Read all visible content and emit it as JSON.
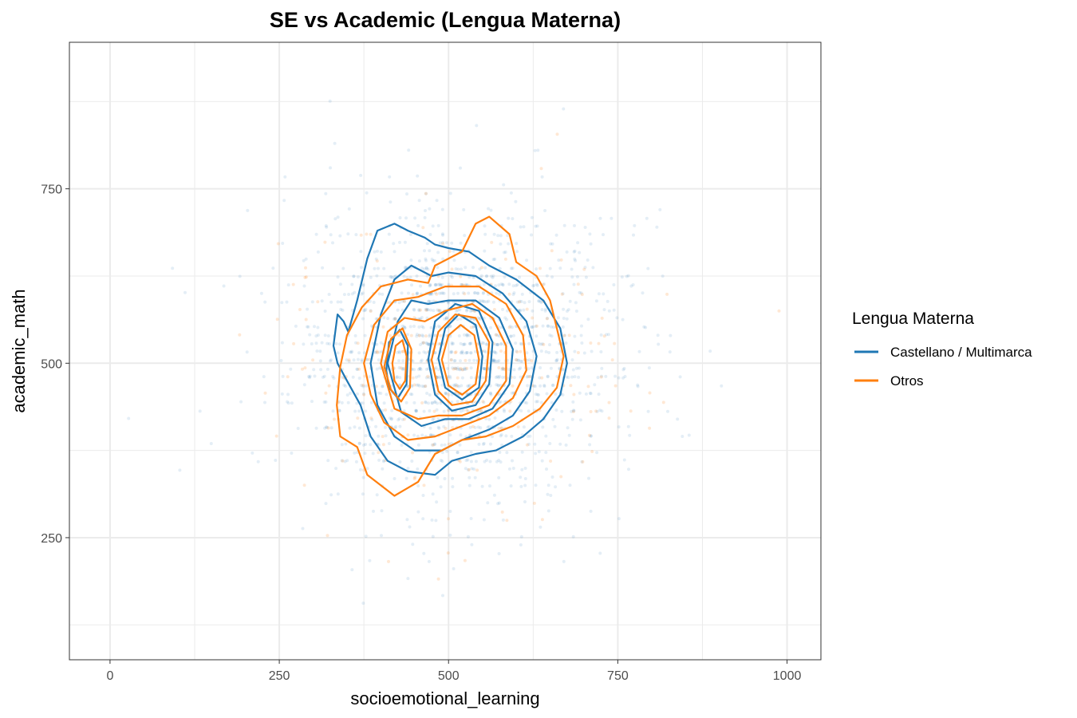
{
  "chart_data": {
    "type": "scatter",
    "title": "SE vs Academic (Lengua Materna)",
    "xlabel": "socioemotional_learning",
    "ylabel": "academic_math",
    "xlim": [
      -60,
      1050
    ],
    "ylim": [
      75,
      960
    ],
    "x_ticks": [
      0,
      250,
      500,
      750,
      1000
    ],
    "x_tick_labels": [
      "0",
      "250",
      "500",
      "750",
      "1000"
    ],
    "y_ticks": [
      250,
      500,
      750
    ],
    "y_tick_labels": [
      "250",
      "500",
      "750"
    ],
    "grid": true,
    "legend_position": "right",
    "legend_title": "Lengua Materna",
    "series": [
      {
        "name": "Castellano / Multimarca",
        "color": "#1f77b4",
        "point_cloud": {
          "x_mean": 510,
          "x_sd": 120,
          "y_mean": 510,
          "y_sd": 105
        },
        "contours": [
          [
            [
              330,
              525
            ],
            [
              336,
              570
            ],
            [
              345,
              560
            ],
            [
              352,
              545
            ],
            [
              365,
              590
            ],
            [
              380,
              650
            ],
            [
              395,
              690
            ],
            [
              420,
              700
            ],
            [
              440,
              690
            ],
            [
              465,
              680
            ],
            [
              480,
              670
            ],
            [
              500,
              665
            ],
            [
              530,
              660
            ],
            [
              560,
              640
            ],
            [
              600,
              620
            ],
            [
              640,
              590
            ],
            [
              665,
              550
            ],
            [
              675,
              500
            ],
            [
              665,
              455
            ],
            [
              640,
              420
            ],
            [
              610,
              395
            ],
            [
              570,
              375
            ],
            [
              540,
              370
            ],
            [
              505,
              360
            ],
            [
              480,
              340
            ],
            [
              440,
              345
            ],
            [
              410,
              360
            ],
            [
              385,
              395
            ],
            [
              370,
              440
            ],
            [
              350,
              475
            ],
            [
              336,
              500
            ]
          ],
          [
            [
              385,
              500
            ],
            [
              400,
              570
            ],
            [
              420,
              620
            ],
            [
              445,
              640
            ],
            [
              475,
              625
            ],
            [
              500,
              630
            ],
            [
              540,
              625
            ],
            [
              580,
              600
            ],
            [
              615,
              560
            ],
            [
              630,
              510
            ],
            [
              620,
              460
            ],
            [
              595,
              425
            ],
            [
              560,
              405
            ],
            [
              520,
              390
            ],
            [
              490,
              375
            ],
            [
              450,
              375
            ],
            [
              420,
              395
            ],
            [
              395,
              440
            ]
          ],
          [
            [
              410,
              500
            ],
            [
              425,
              560
            ],
            [
              445,
              590
            ],
            [
              470,
              585
            ],
            [
              500,
              590
            ],
            [
              540,
              590
            ],
            [
              575,
              565
            ],
            [
              595,
              520
            ],
            [
              590,
              470
            ],
            [
              565,
              435
            ],
            [
              530,
              420
            ],
            [
              495,
              420
            ],
            [
              460,
              410
            ],
            [
              430,
              430
            ]
          ],
          [
            [
              470,
              505
            ],
            [
              480,
              560
            ],
            [
              510,
              585
            ],
            [
              545,
              575
            ],
            [
              565,
              530
            ],
            [
              560,
              470
            ],
            [
              540,
              440
            ],
            [
              505,
              432
            ],
            [
              480,
              455
            ]
          ],
          [
            [
              485,
              507
            ],
            [
              495,
              550
            ],
            [
              515,
              570
            ],
            [
              540,
              555
            ],
            [
              550,
              510
            ],
            [
              545,
              465
            ],
            [
              520,
              448
            ],
            [
              495,
              465
            ]
          ],
          [
            [
              408,
              490
            ],
            [
              412,
              530
            ],
            [
              428,
              548
            ],
            [
              440,
              525
            ],
            [
              438,
              470
            ],
            [
              425,
              450
            ],
            [
              412,
              465
            ]
          ]
        ]
      },
      {
        "name": "Otros",
        "color": "#ff7f0e",
        "point_cloud": {
          "x_mean": 510,
          "x_sd": 125,
          "y_mean": 495,
          "y_sd": 100
        },
        "contours": [
          [
            [
              340,
              495
            ],
            [
              350,
              540
            ],
            [
              372,
              580
            ],
            [
              400,
              610
            ],
            [
              440,
              620
            ],
            [
              470,
              615
            ],
            [
              480,
              640
            ],
            [
              520,
              660
            ],
            [
              540,
              700
            ],
            [
              560,
              710
            ],
            [
              590,
              685
            ],
            [
              600,
              645
            ],
            [
              630,
              625
            ],
            [
              650,
              590
            ],
            [
              660,
              550
            ],
            [
              670,
              510
            ],
            [
              660,
              465
            ],
            [
              635,
              435
            ],
            [
              595,
              410
            ],
            [
              555,
              395
            ],
            [
              520,
              390
            ],
            [
              480,
              370
            ],
            [
              455,
              330
            ],
            [
              420,
              310
            ],
            [
              380,
              340
            ],
            [
              365,
              380
            ],
            [
              340,
              395
            ],
            [
              335,
              440
            ]
          ],
          [
            [
              375,
              500
            ],
            [
              390,
              555
            ],
            [
              420,
              590
            ],
            [
              455,
              595
            ],
            [
              495,
              610
            ],
            [
              545,
              610
            ],
            [
              585,
              585
            ],
            [
              610,
              540
            ],
            [
              615,
              490
            ],
            [
              595,
              450
            ],
            [
              560,
              425
            ],
            [
              520,
              410
            ],
            [
              480,
              395
            ],
            [
              440,
              390
            ],
            [
              405,
              415
            ],
            [
              385,
              455
            ]
          ],
          [
            [
              400,
              500
            ],
            [
              410,
              545
            ],
            [
              435,
              565
            ],
            [
              465,
              560
            ],
            [
              495,
              575
            ],
            [
              535,
              585
            ],
            [
              565,
              565
            ],
            [
              585,
              525
            ],
            [
              585,
              475
            ],
            [
              560,
              440
            ],
            [
              520,
              425
            ],
            [
              485,
              425
            ],
            [
              455,
              420
            ],
            [
              420,
              435
            ]
          ],
          [
            [
              475,
              505
            ],
            [
              485,
              545
            ],
            [
              510,
              570
            ],
            [
              540,
              565
            ],
            [
              560,
              530
            ],
            [
              555,
              475
            ],
            [
              535,
              445
            ],
            [
              505,
              440
            ],
            [
              485,
              460
            ]
          ],
          [
            [
              490,
              505
            ],
            [
              500,
              540
            ],
            [
              518,
              555
            ],
            [
              538,
              540
            ],
            [
              545,
              505
            ],
            [
              540,
              470
            ],
            [
              520,
              455
            ],
            [
              500,
              468
            ]
          ],
          [
            [
              405,
              495
            ],
            [
              415,
              535
            ],
            [
              432,
              550
            ],
            [
              445,
              520
            ],
            [
              443,
              465
            ],
            [
              430,
              445
            ],
            [
              415,
              462
            ]
          ],
          [
            [
              417,
              500
            ],
            [
              422,
              525
            ],
            [
              432,
              533
            ],
            [
              438,
              510
            ],
            [
              436,
              475
            ],
            [
              428,
              463
            ],
            [
              420,
              475
            ]
          ]
        ]
      }
    ]
  }
}
